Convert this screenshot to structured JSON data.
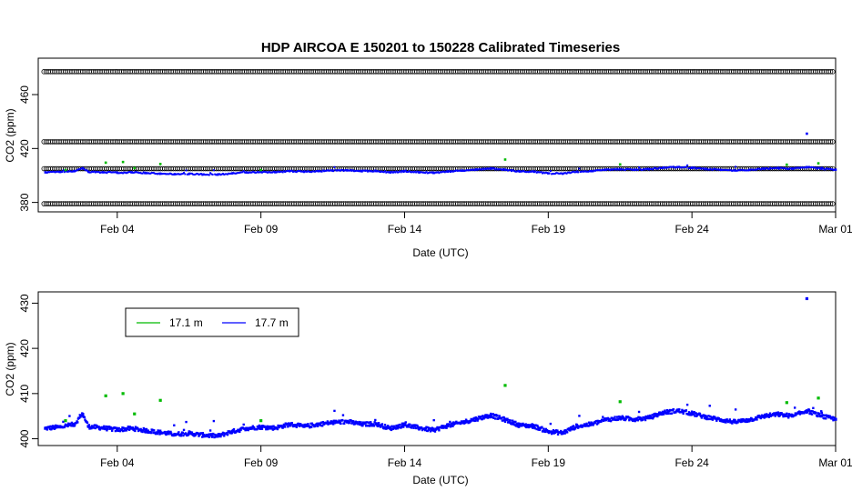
{
  "chart_data": [
    {
      "type": "scatter",
      "title": "HDP   AIRCOA  E   150201  to  150228   Calibrated Timeseries",
      "xlabel": "Date (UTC)",
      "ylabel": "CO2 (ppm)",
      "x_ticks": [
        "Feb 04",
        "Feb 09",
        "Feb 14",
        "Feb 19",
        "Feb 24",
        "Mar 01"
      ],
      "xlim_days": [
        1.25,
        29.0
      ],
      "tick_days": [
        4,
        9,
        14,
        19,
        24,
        29
      ],
      "y_ticks": [
        380,
        420,
        460
      ],
      "y_tick_labels": [
        "380",
        "420",
        "460"
      ],
      "ylim": [
        373,
        487
      ],
      "reference_levels": [
        {
          "value": 379,
          "color": "#000000",
          "marker": "open-circle"
        },
        {
          "value": 405,
          "color": "#000000",
          "marker": "open-circle"
        },
        {
          "value": 425,
          "color": "#000000",
          "marker": "open-circle"
        },
        {
          "value": 477,
          "color": "#000000",
          "marker": "open-circle"
        }
      ],
      "series_colors": [
        "#00bb00",
        "#0000ff"
      ]
    },
    {
      "type": "scatter",
      "title": "",
      "xlabel": "Date (UTC)",
      "ylabel": "CO2 (ppm)",
      "x_ticks": [
        "Feb 04",
        "Feb 09",
        "Feb 14",
        "Feb 19",
        "Feb 24",
        "Mar 01"
      ],
      "xlim_days": [
        1.25,
        29.0
      ],
      "tick_days": [
        4,
        9,
        14,
        19,
        24,
        29
      ],
      "y_ticks": [
        400,
        410,
        420,
        430
      ],
      "y_tick_labels": [
        "400",
        "410",
        "420",
        "430"
      ],
      "ylim": [
        398.5,
        432.5
      ],
      "legend": {
        "placement": "top-left",
        "entries": [
          {
            "label": "17.1 m",
            "color": "#00bb00"
          },
          {
            "label": "17.7 m",
            "color": "#0000ff"
          }
        ]
      },
      "series": [
        {
          "color": "#0000ff",
          "x_days": [
            1.5,
            2.0,
            2.5,
            2.8,
            3.0,
            3.5,
            4.0,
            4.5,
            5.0,
            5.5,
            6.0,
            6.5,
            7.0,
            7.5,
            8.0,
            8.5,
            9.0,
            9.5,
            10.0,
            10.5,
            11.0,
            11.5,
            12.0,
            12.5,
            13.0,
            13.5,
            14.0,
            14.5,
            15.0,
            15.5,
            16.0,
            16.5,
            17.0,
            17.5,
            18.0,
            18.5,
            19.0,
            19.5,
            20.0,
            20.5,
            21.0,
            21.5,
            22.0,
            22.5,
            23.0,
            23.5,
            24.0,
            24.5,
            25.0,
            25.5,
            26.0,
            26.5,
            27.0,
            27.5,
            28.0,
            28.5,
            29.0
          ],
          "values": [
            402.3,
            402.6,
            403.2,
            405.4,
            402.7,
            402.4,
            402.0,
            402.3,
            401.8,
            401.4,
            401.0,
            401.2,
            400.8,
            400.6,
            401.6,
            402.3,
            402.6,
            402.4,
            403.2,
            402.7,
            403.2,
            403.6,
            403.8,
            403.2,
            403.3,
            402.3,
            403.1,
            402.4,
            401.9,
            402.9,
            403.6,
            404.4,
            405.2,
            404.2,
            403.0,
            402.8,
            401.6,
            401.3,
            402.8,
            403.2,
            404.2,
            404.6,
            404.3,
            404.6,
            405.8,
            406.2,
            405.6,
            404.8,
            404.2,
            403.7,
            404.2,
            405.0,
            405.4,
            405.0,
            406.2,
            405.0,
            404.3
          ]
        },
        {
          "color": "#0000ff",
          "x_days": [
            28.0
          ],
          "values": [
            431.0
          ]
        },
        {
          "color": "#00bb00",
          "x_days": [
            2.2,
            3.6,
            4.2,
            4.6,
            5.5,
            9.0,
            17.5,
            21.5,
            27.3,
            28.4
          ],
          "values": [
            404.0,
            409.5,
            410.0,
            405.5,
            408.5,
            404.0,
            411.8,
            408.2,
            408.0,
            409.0
          ]
        }
      ]
    }
  ]
}
